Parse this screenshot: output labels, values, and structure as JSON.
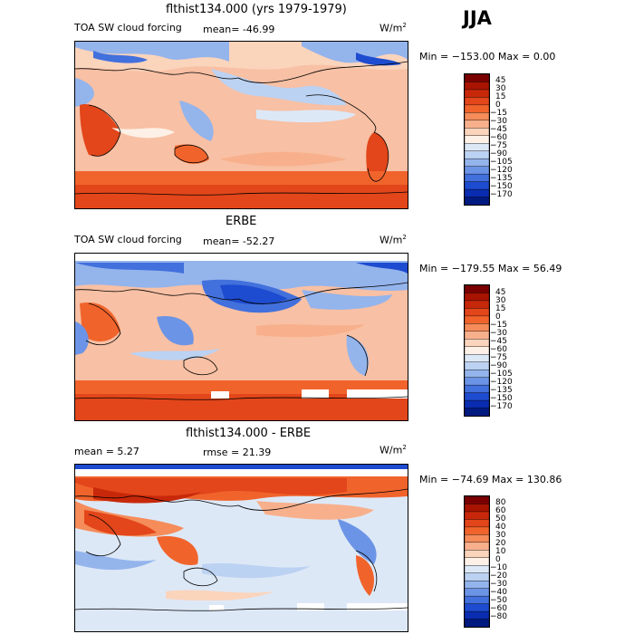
{
  "season": "JJA",
  "panels": [
    {
      "title": "flthist134.000 (yrs 1979-1979)",
      "left_label": "TOA SW cloud forcing",
      "mean_label": "mean= -46.99",
      "units": "W/m",
      "units_exp": "2",
      "minmax": "Min = −153.00 Max =    0.00",
      "levels": [
        "45",
        "30",
        "15",
        "0",
        "−15",
        "−30",
        "−45",
        "−60",
        "−75",
        "−90",
        "−105",
        "−120",
        "−135",
        "−150",
        "−170"
      ]
    },
    {
      "title": "ERBE",
      "left_label": "TOA SW cloud forcing",
      "mean_label": "mean= -52.27",
      "units": "W/m",
      "units_exp": "2",
      "minmax": "Min = −179.55 Max =  56.49",
      "levels": [
        "45",
        "30",
        "15",
        "0",
        "−15",
        "−30",
        "−45",
        "−60",
        "−75",
        "−90",
        "−105",
        "−120",
        "−135",
        "−150",
        "−170"
      ]
    },
    {
      "title": "flthist134.000 - ERBE",
      "left_label": "mean =    5.27",
      "mean_label": "rmse =  21.39",
      "units": "W/m",
      "units_exp": "2",
      "minmax": "Min = −74.69 Max = 130.86",
      "levels": [
        "80",
        "60",
        "50",
        "40",
        "30",
        "20",
        "10",
        "0",
        "−10",
        "−20",
        "−30",
        "−40",
        "−50",
        "−60",
        "−80"
      ]
    }
  ],
  "palette": {
    "abs": [
      "#7a0000",
      "#a81400",
      "#c8280a",
      "#e2461a",
      "#f0642c",
      "#f58c5a",
      "#f8b08c",
      "#fbd4bc",
      "#fdf0e6",
      "#dde8f7",
      "#bcd2f2",
      "#94b4ec",
      "#6c94e6",
      "#4270dc",
      "#1e4cd0",
      "#0a2cb0",
      "#001a80"
    ],
    "diff": [
      "#7a0000",
      "#a81400",
      "#c8280a",
      "#e2461a",
      "#f0642c",
      "#f58c5a",
      "#f8b08c",
      "#fbd4bc",
      "#fdf0e6",
      "#dde8f7",
      "#bcd2f2",
      "#94b4ec",
      "#6c94e6",
      "#4270dc",
      "#1e4cd0",
      "#0a2cb0",
      "#001a80"
    ]
  }
}
